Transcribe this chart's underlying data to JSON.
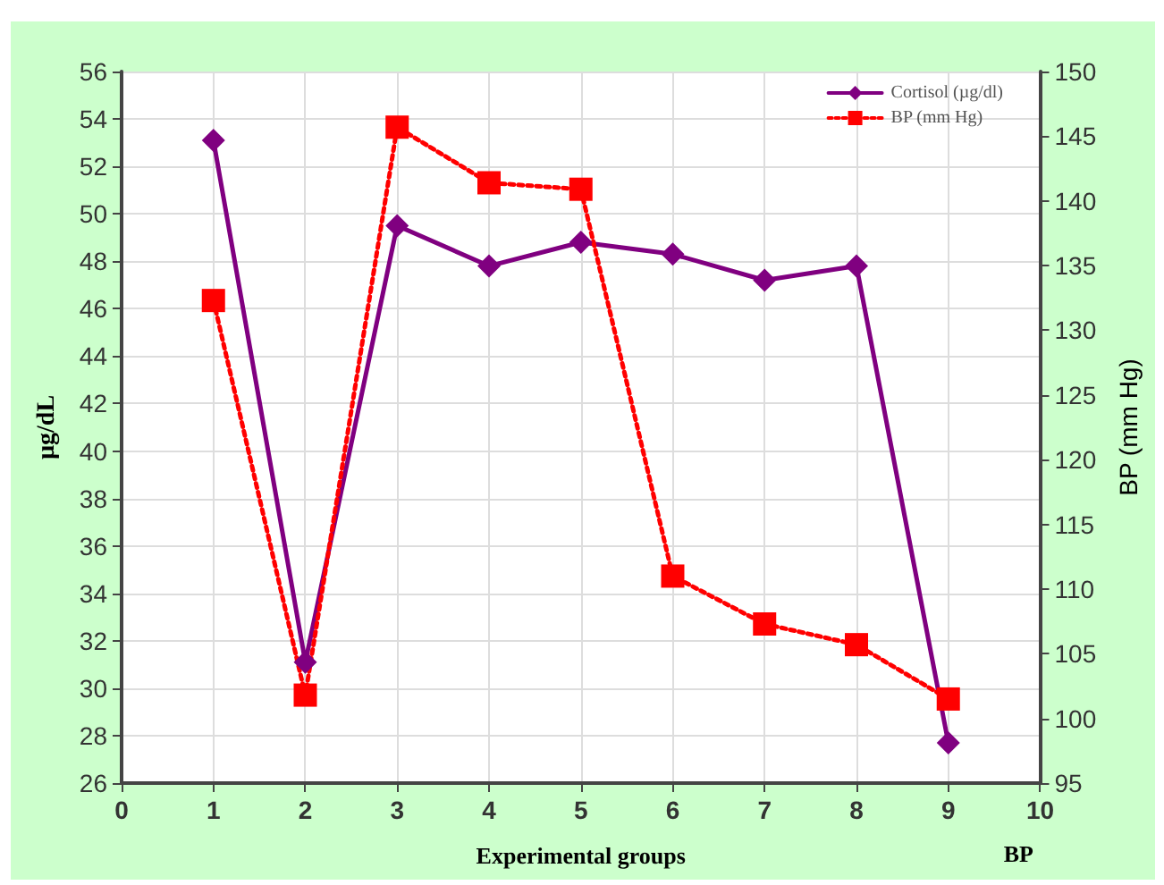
{
  "chart_data": {
    "type": "line",
    "xlabel": "Experimental groups",
    "ylabel": "µg/dL",
    "y2label": "BP (mm Hg)",
    "annotations": [
      "BP"
    ],
    "x": [
      1,
      2,
      3,
      4,
      5,
      6,
      7,
      8,
      9
    ],
    "series": [
      {
        "name": "Cortisol (µg/dl)",
        "color": "#800080",
        "marker": "diamond",
        "line_style": "solid",
        "values": [
          53.1,
          31.1,
          49.5,
          47.8,
          48.8,
          48.3,
          47.2,
          47.8,
          27.7
        ]
      },
      {
        "name": "BP (mm Hg)",
        "color": "#ff0000",
        "marker": "square",
        "line_style": "dotted",
        "axis": "y2",
        "values": [
          132.3,
          101.8,
          145.7,
          141.4,
          140.9,
          111.0,
          107.3,
          105.7,
          101.5
        ]
      }
    ],
    "xlim": [
      0,
      10
    ],
    "xticks": [
      0,
      1,
      2,
      3,
      4,
      5,
      6,
      7,
      8,
      9,
      10
    ],
    "ylim": [
      26,
      56
    ],
    "yticks": [
      26,
      28,
      30,
      32,
      34,
      36,
      38,
      40,
      42,
      44,
      46,
      48,
      50,
      52,
      54,
      56
    ],
    "y2lim": [
      95,
      150
    ],
    "y2ticks": [
      95,
      100,
      105,
      110,
      115,
      120,
      125,
      130,
      135,
      140,
      145,
      150
    ],
    "grid": true,
    "legend": "top right"
  }
}
